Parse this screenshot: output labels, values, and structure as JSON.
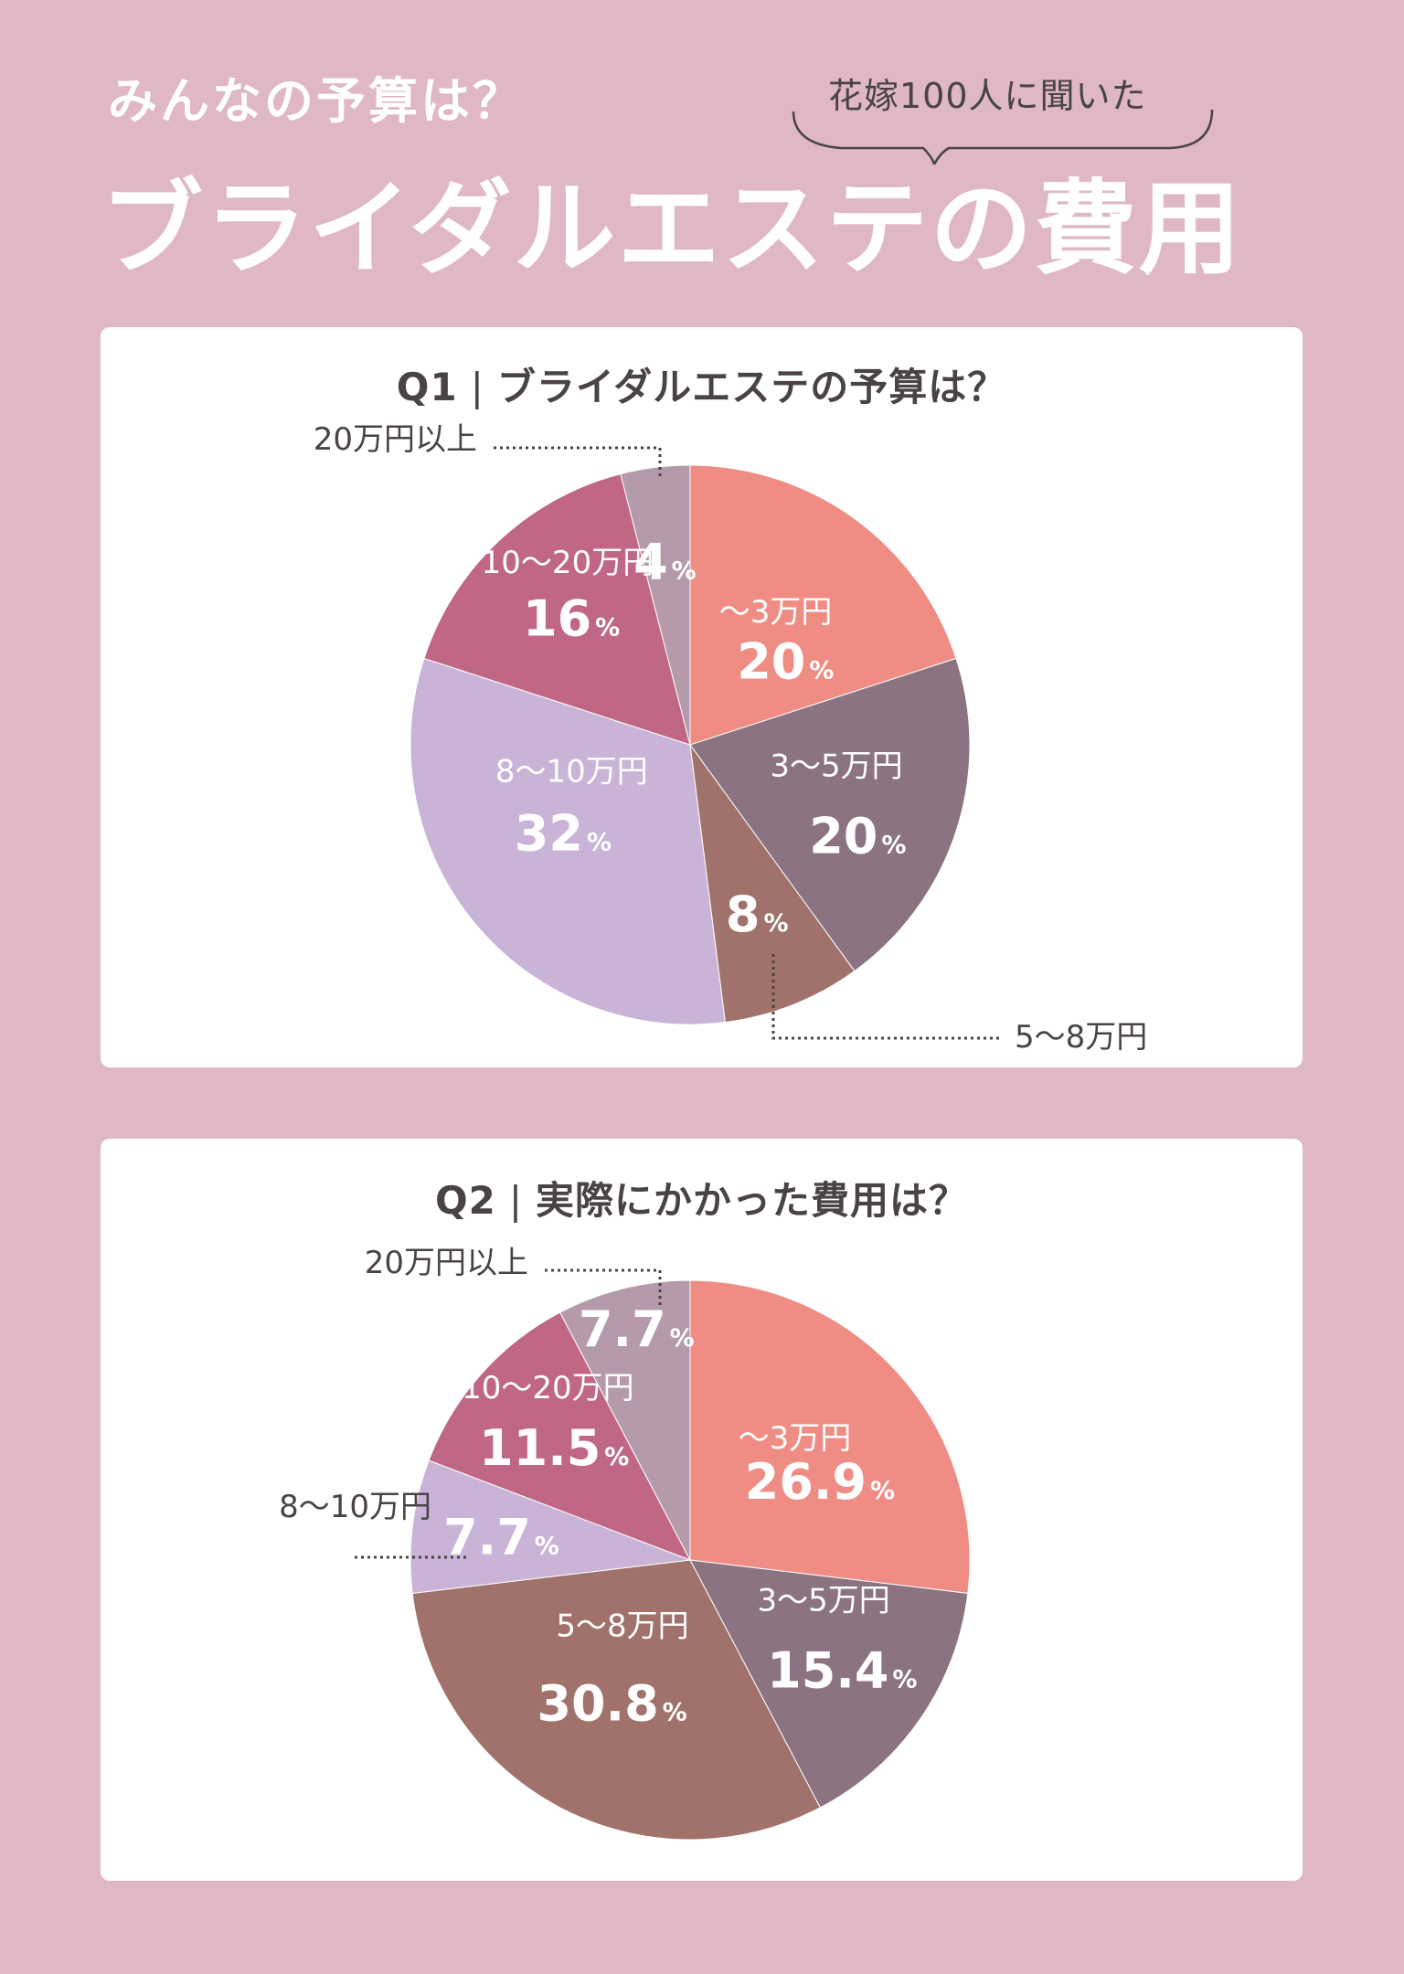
{
  "header": {
    "subtitle": "みんなの予算は？",
    "bubble": "花嫁100人に聞いた",
    "title": "ブライダルエステの費用"
  },
  "q1": {
    "label": "Q1",
    "text": "ブライダルエステの予算は？"
  },
  "q2": {
    "label": "Q2",
    "text": "実際にかかった費用は？"
  },
  "colors": {
    "background": "#dfb8c4",
    "cat_under3": "#ef8d84",
    "cat_3to5": "#8b7382",
    "cat_5to8": "#a0726b",
    "cat_8to10": "#c9b3d6",
    "cat_10to20": "#c06785",
    "cat_20plus": "#b49aab"
  },
  "chart_data": [
    {
      "type": "pie",
      "title": "ブライダルエステの予算は？",
      "unit": "%",
      "slices": [
        {
          "label": "～3万円",
          "value": 20,
          "value_text": "20",
          "color": "#ef8d84"
        },
        {
          "label": "3～5万円",
          "value": 20,
          "value_text": "20",
          "color": "#8b7382"
        },
        {
          "label": "5～8万円",
          "value": 8,
          "value_text": "8",
          "color": "#a0726b"
        },
        {
          "label": "8～10万円",
          "value": 32,
          "value_text": "32",
          "color": "#c9b3d6"
        },
        {
          "label": "10～20万円",
          "value": 16,
          "value_text": "16",
          "color": "#c06785"
        },
        {
          "label": "20万円以上",
          "value": 4,
          "value_text": "4",
          "color": "#b49aab"
        }
      ]
    },
    {
      "type": "pie",
      "title": "実際にかかった費用は？",
      "unit": "%",
      "slices": [
        {
          "label": "～3万円",
          "value": 26.9,
          "value_text": "26.9",
          "color": "#ef8d84"
        },
        {
          "label": "3～5万円",
          "value": 15.4,
          "value_text": "15.4",
          "color": "#8b7382"
        },
        {
          "label": "5～8万円",
          "value": 30.8,
          "value_text": "30.8",
          "color": "#a0726b"
        },
        {
          "label": "8～10万円",
          "value": 7.7,
          "value_text": "7.7",
          "color": "#c9b3d6"
        },
        {
          "label": "10～20万円",
          "value": 11.5,
          "value_text": "11.5",
          "color": "#c06785"
        },
        {
          "label": "20万円以上",
          "value": 7.7,
          "value_text": "7.7",
          "color": "#b49aab"
        }
      ]
    }
  ]
}
